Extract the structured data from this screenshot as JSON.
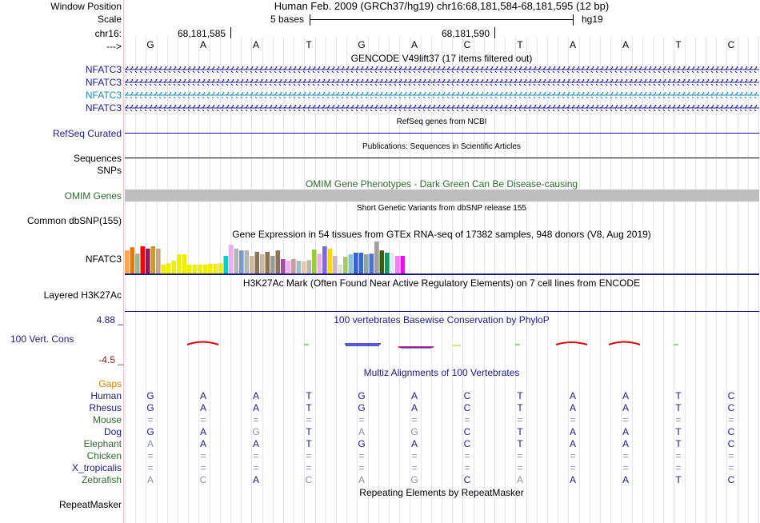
{
  "header": {
    "window_position_label": "Window Position",
    "scale_label": "Scale",
    "chrom_label": "chr16:",
    "arrow_label": "--->",
    "assembly_title": "Human Feb. 2009 (GRCh37/hg19)   chr16:68,181,584-68,181,595 (12 bp)",
    "scale_text": "5 bases",
    "db_label": "hg19",
    "pos_1": "68,181,585",
    "pos_2": "68,181,590"
  },
  "sequence": [
    "G",
    "A",
    "A",
    "T",
    "G",
    "A",
    "C",
    "T",
    "A",
    "A",
    "T",
    "C"
  ],
  "tracks": {
    "gencode": {
      "title": "GENCODE V49lift37 (17 items filtered out)",
      "items": [
        {
          "label": "NFATC3",
          "color": "#1a1a8c"
        },
        {
          "label": "NFATC3",
          "color": "#1a1a8c"
        },
        {
          "label": "NFATC3",
          "color": "#1a8ab0"
        },
        {
          "label": "NFATC3",
          "color": "#1a1a8c"
        }
      ]
    },
    "refseq": {
      "title": "RefSeq genes from NCBI",
      "label": "RefSeq Curated"
    },
    "publications": {
      "title": "Publications: Sequences in Scientific Articles",
      "label": "Sequences"
    },
    "snps_label": "SNPs",
    "omim": {
      "title": "OMIM Gene Phenotypes - Dark Green Can Be Disease-causing",
      "label": "OMIM Genes"
    },
    "dbsnp": {
      "title": "Short Genetic Variants from dbSNP release 155",
      "label": "Common dbSNP(155)"
    },
    "gtex": {
      "title": "Gene Expression in 54 tissues from GTEx RNA-seq of 17382 samples, 948 donors (V8, Aug 2019)",
      "label": "NFATC3",
      "bars": [
        {
          "value": 0.72,
          "color": "#ffa54f"
        },
        {
          "value": 0.82,
          "color": "#ee7600"
        },
        {
          "value": 0.62,
          "color": "#8fbc8f"
        },
        {
          "value": 0.85,
          "color": "#ff0000"
        },
        {
          "value": 0.78,
          "color": "#8b1c62"
        },
        {
          "value": 0.85,
          "color": "#cd9b1d"
        },
        {
          "value": 0.78,
          "color": "#c9a58a"
        },
        {
          "value": 0.28,
          "color": "#eeee00"
        },
        {
          "value": 0.32,
          "color": "#eeee00"
        },
        {
          "value": 0.4,
          "color": "#eeee00"
        },
        {
          "value": 0.6,
          "color": "#eeee00"
        },
        {
          "value": 0.6,
          "color": "#eeee00"
        },
        {
          "value": 0.28,
          "color": "#eeee00"
        },
        {
          "value": 0.28,
          "color": "#eeee00"
        },
        {
          "value": 0.28,
          "color": "#eeee00"
        },
        {
          "value": 0.28,
          "color": "#eeee00"
        },
        {
          "value": 0.3,
          "color": "#eeee00"
        },
        {
          "value": 0.3,
          "color": "#eeee00"
        },
        {
          "value": 0.32,
          "color": "#eeee00"
        },
        {
          "value": 0.55,
          "color": "#00cdcd"
        },
        {
          "value": 0.9,
          "color": "#eeaeee"
        },
        {
          "value": 0.78,
          "color": "#b4b4b4"
        },
        {
          "value": 0.72,
          "color": "#7a9ac8"
        },
        {
          "value": 0.72,
          "color": "#b4b4b4"
        },
        {
          "value": 0.55,
          "color": "#cdb79e"
        },
        {
          "value": 0.68,
          "color": "#8b7355"
        },
        {
          "value": 0.6,
          "color": "#cdb79e"
        },
        {
          "value": 0.68,
          "color": "#8b7355"
        },
        {
          "value": 0.55,
          "color": "#9a9a9a"
        },
        {
          "value": 0.72,
          "color": "#8b7355"
        },
        {
          "value": 0.45,
          "color": "#a64ca6"
        },
        {
          "value": 0.4,
          "color": "#eeaeee"
        },
        {
          "value": 0.45,
          "color": "#cd9b9b"
        },
        {
          "value": 0.4,
          "color": "#9ac0cd"
        },
        {
          "value": 0.38,
          "color": "#e8c8a0"
        },
        {
          "value": 0.42,
          "color": "#b7b7b7"
        },
        {
          "value": 0.75,
          "color": "#9acd32"
        },
        {
          "value": 0.62,
          "color": "#eeaeee"
        },
        {
          "value": 0.85,
          "color": "#7a67ee"
        },
        {
          "value": 0.78,
          "color": "#ffd700"
        },
        {
          "value": 0.55,
          "color": "#cdb5cd"
        },
        {
          "value": 0.28,
          "color": "#dde4c8"
        },
        {
          "value": 0.52,
          "color": "#a2cd5a"
        },
        {
          "value": 0.6,
          "color": "#8fbfd8"
        },
        {
          "value": 0.65,
          "color": "#3a5fcd"
        },
        {
          "value": 0.65,
          "color": "#2f6ad0"
        },
        {
          "value": 0.6,
          "color": "#8ea3a8"
        },
        {
          "value": 0.62,
          "color": "#5070d0"
        },
        {
          "value": 1.0,
          "color": "#a0a0a0"
        },
        {
          "value": 0.72,
          "color": "#3a5f0b"
        },
        {
          "value": 0.65,
          "color": "#00a060"
        },
        {
          "value": 0.65,
          "color": "#eaeaea"
        },
        {
          "value": 0.55,
          "color": "#ee82ee"
        },
        {
          "value": 0.55,
          "color": "#ff00ff"
        }
      ]
    },
    "h3k27ac": {
      "title": "H3K27Ac Mark (Often Found Near Active Regulatory Elements) on 7 cell lines from ENCODE",
      "label": "Layered H3K27Ac"
    },
    "phylop": {
      "title": "100 vertebrates Basewise Conservation by PhyloP",
      "label": "100 Vert. Cons",
      "max_label": "4.88 _",
      "min_label": "-4.5 _"
    },
    "multiz": {
      "title": "Multiz Alignments of 100 Vertebrates",
      "gaps_label": "Gaps",
      "species": [
        {
          "name": "Human",
          "color": "#1a1a8c",
          "bases": [
            "G",
            "A",
            "A",
            "T",
            "G",
            "A",
            "C",
            "T",
            "A",
            "A",
            "T",
            "C"
          ],
          "faint": [
            false,
            false,
            false,
            false,
            false,
            false,
            false,
            false,
            false,
            false,
            false,
            false
          ]
        },
        {
          "name": "Rhesus",
          "color": "#1a1a8c",
          "bases": [
            "G",
            "A",
            "A",
            "T",
            "G",
            "A",
            "C",
            "T",
            "A",
            "A",
            "T",
            "C"
          ],
          "faint": [
            false,
            false,
            false,
            false,
            false,
            false,
            false,
            false,
            false,
            false,
            false,
            false
          ]
        },
        {
          "name": "Mouse",
          "color": "#2e6b2e",
          "bases": [
            "=",
            "=",
            "=",
            "=",
            "=",
            "=",
            "=",
            "=",
            "=",
            "=",
            "=",
            "="
          ],
          "faint": [
            true,
            true,
            true,
            true,
            true,
            true,
            true,
            true,
            true,
            true,
            true,
            true
          ]
        },
        {
          "name": "Dog",
          "color": "#1a1a8c",
          "bases": [
            "G",
            "A",
            "G",
            "T",
            "A",
            "G",
            "C",
            "T",
            "A",
            "A",
            "T",
            "C"
          ],
          "faint": [
            false,
            false,
            true,
            false,
            true,
            true,
            false,
            false,
            false,
            false,
            false,
            false
          ]
        },
        {
          "name": "Elephant",
          "color": "#2e6b2e",
          "bases": [
            "A",
            "A",
            "A",
            "T",
            "G",
            "A",
            "C",
            "T",
            "A",
            "A",
            "T",
            "C"
          ],
          "faint": [
            true,
            false,
            false,
            false,
            false,
            false,
            false,
            false,
            false,
            false,
            false,
            false
          ]
        },
        {
          "name": "Chicken",
          "color": "#2e6b2e",
          "bases": [
            "=",
            "=",
            "=",
            "=",
            "=",
            "=",
            "=",
            "=",
            "=",
            "=",
            "=",
            "="
          ],
          "faint": [
            true,
            true,
            true,
            true,
            true,
            true,
            true,
            true,
            true,
            true,
            true,
            true
          ]
        },
        {
          "name": "X_tropicalis",
          "color": "#1a1a8c",
          "bases": [
            "=",
            "=",
            "=",
            "=",
            "=",
            "=",
            "=",
            "=",
            "=",
            "=",
            "=",
            "="
          ],
          "faint": [
            true,
            true,
            true,
            true,
            true,
            true,
            true,
            true,
            true,
            true,
            true,
            true
          ]
        },
        {
          "name": "Zebrafish",
          "color": "#2e6b2e",
          "bases": [
            "A",
            "C",
            "A",
            "C",
            "A",
            "G",
            "C",
            "A",
            "A",
            "A",
            "T",
            "C"
          ],
          "faint": [
            true,
            true,
            false,
            true,
            true,
            true,
            false,
            true,
            false,
            false,
            false,
            false
          ]
        }
      ]
    },
    "repeatmasker": {
      "title": "Repeating Elements by RepeatMasker",
      "label": "RepeatMasker"
    }
  },
  "colors": {
    "track_title": "#1a1a8c",
    "omim_title": "#2e6b2e",
    "gaps": "#d08000",
    "phylop_min": "#8c1a1a",
    "faint_base": "#8c8cbe"
  }
}
